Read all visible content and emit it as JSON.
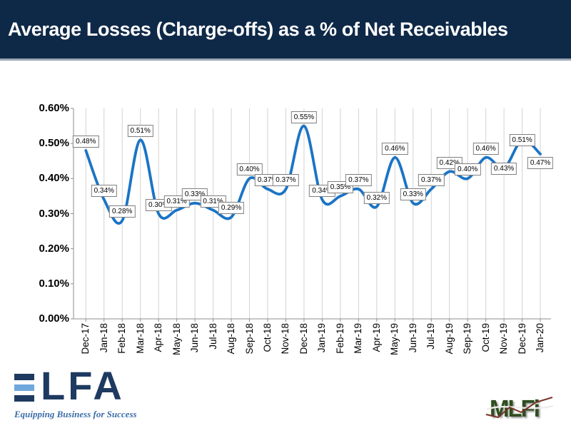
{
  "header": {
    "title": "Average Losses (Charge-offs) as a % of Net Receivables"
  },
  "chart_data": {
    "type": "line",
    "title": "Average Losses (Charge-offs) as a % of Net Receivables",
    "smoothed": true,
    "legend": "none",
    "grid": "vertical-only",
    "xlabel": "",
    "ylabel": "",
    "ylim": [
      0,
      0.6
    ],
    "yticks": [
      "0.00%",
      "0.10%",
      "0.20%",
      "0.30%",
      "0.40%",
      "0.50%",
      "0.60%"
    ],
    "categories": [
      "Dec-17",
      "Jan-18",
      "Feb-18",
      "Mar-18",
      "Apr-18",
      "May-18",
      "Jun-18",
      "Jul-18",
      "Aug-18",
      "Sep-18",
      "Oct-18",
      "Nov-18",
      "Dec-18",
      "Jan-19",
      "Feb-19",
      "Mar-19",
      "Apr-19",
      "May-19",
      "Jun-19",
      "Jul-19",
      "Aug-19",
      "Sep-19",
      "Oct-19",
      "Nov-19",
      "Dec-19",
      "Jan-20"
    ],
    "series": [
      {
        "name": "Average Losses (Charge-offs) as a % of Net Receivables",
        "values": [
          0.48,
          0.34,
          0.28,
          0.51,
          0.3,
          0.31,
          0.33,
          0.31,
          0.29,
          0.4,
          0.37,
          0.37,
          0.55,
          0.34,
          0.35,
          0.37,
          0.32,
          0.46,
          0.33,
          0.37,
          0.42,
          0.4,
          0.46,
          0.43,
          0.51,
          0.47
        ]
      }
    ],
    "data_labels": [
      "0.48%",
      "0.34%",
      "0.28%",
      "0.51%",
      "0.30%",
      "0.31%",
      "0.33%",
      "0.31%",
      "0.29%",
      "0.40%",
      "0.37%",
      "0.37%",
      "0.55%",
      "0.34%",
      "0.35%",
      "0.37%",
      "0.32%",
      "0.46%",
      "0.33%",
      "0.37%",
      "0.42%",
      "0.40%",
      "0.46%",
      "0.43%",
      "0.51%",
      "0.47%"
    ],
    "label_placement": [
      "above",
      "above",
      "above",
      "above",
      "above",
      "above",
      "above",
      "above",
      "above",
      "above",
      "above",
      "above",
      "above",
      "above",
      "above",
      "above",
      "above",
      "above",
      "above",
      "above",
      "above",
      "above",
      "above",
      "mid",
      "mid",
      "below"
    ]
  },
  "footer": {
    "elfa_logo": {
      "name": "ELFA",
      "letters": "LFA",
      "tagline": "Equipping Business for Success"
    },
    "mlfi_logo": {
      "text": "MLFi"
    }
  },
  "colors": {
    "header_bg": "#0E2847",
    "header_rule": "#9BA7B3",
    "line": "#1B74C5",
    "gridline": "#D2D2D2",
    "axis": "#8C8C8C",
    "data_label_border": "#7F7F7F",
    "elfa_navy": "#1E3A60",
    "elfa_light_blue": "#6FA8DC",
    "elfa_tagline_blue": "#3C6EA8",
    "mlfi_green": "#2F4D20",
    "mlfi_line_red": "#7A332B"
  }
}
